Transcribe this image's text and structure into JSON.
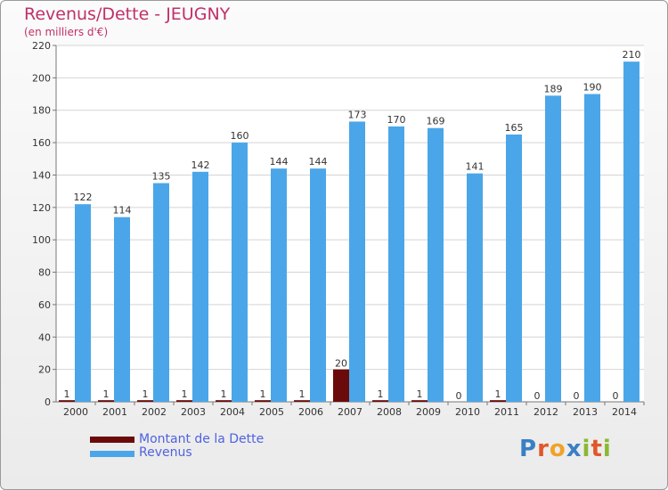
{
  "title": "Revenus/Dette - JEUGNY",
  "subtitle": "(en milliers d'€)",
  "colors": {
    "revenus": "#4aa6e8",
    "dette": "#6b0a0a",
    "title": "#c0306a",
    "legend_text": "#4f62e0"
  },
  "logo": {
    "text": "Proxiti",
    "letters": [
      {
        "ch": "P",
        "color": "#3a7fc4"
      },
      {
        "ch": "r",
        "color": "#e0572b"
      },
      {
        "ch": "o",
        "color": "#f0a22a"
      },
      {
        "ch": "x",
        "color": "#3a7fc4"
      },
      {
        "ch": "i",
        "color": "#8bb832"
      },
      {
        "ch": "t",
        "color": "#e0572b"
      },
      {
        "ch": "i",
        "color": "#8bb832"
      }
    ]
  },
  "chart_data": {
    "type": "bar",
    "title": "Revenus/Dette - JEUGNY",
    "subtitle": "(en milliers d'€)",
    "categories": [
      "2000",
      "2001",
      "2002",
      "2003",
      "2004",
      "2005",
      "2006",
      "2007",
      "2008",
      "2009",
      "2010",
      "2011",
      "2012",
      "2013",
      "2014"
    ],
    "series": [
      {
        "name": "Montant de la Dette",
        "values": [
          1,
          1,
          1,
          1,
          1,
          1,
          1,
          20,
          1,
          1,
          0,
          1,
          0,
          0,
          0
        ]
      },
      {
        "name": "Revenus",
        "values": [
          122,
          114,
          135,
          142,
          160,
          144,
          144,
          173,
          170,
          169,
          141,
          165,
          189,
          190,
          210
        ]
      }
    ],
    "ylim": [
      0,
      220
    ],
    "yticks": [
      0,
      20,
      40,
      60,
      80,
      100,
      120,
      140,
      160,
      180,
      200,
      220
    ],
    "grid": true,
    "legend_position": "bottom-left"
  }
}
